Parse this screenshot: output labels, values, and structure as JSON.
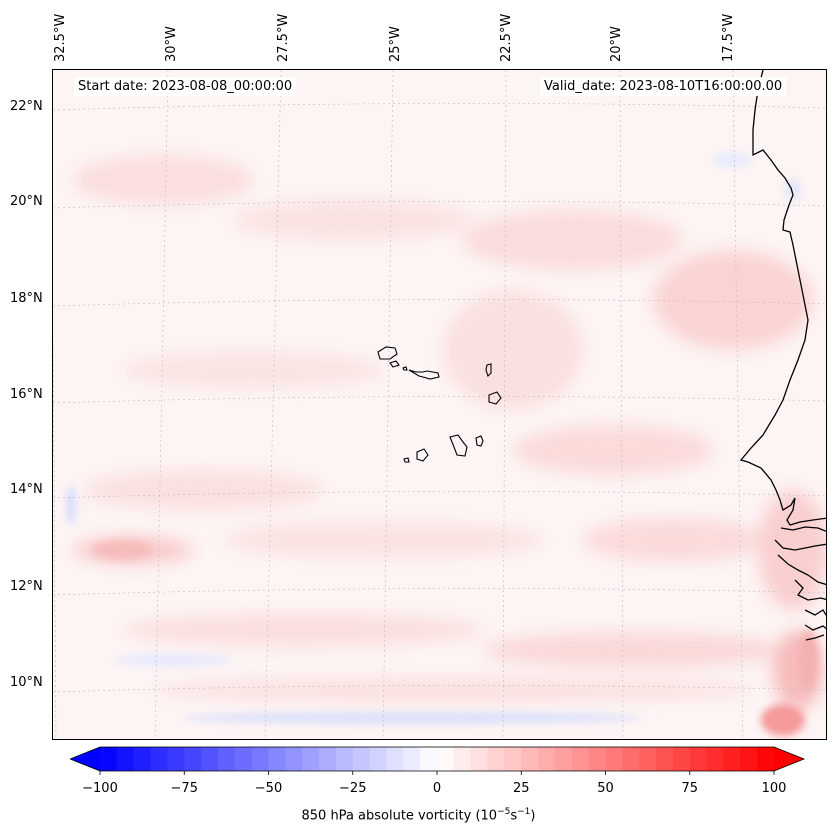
{
  "map": {
    "start_date": "Start date: 2023-08-08_00:00:00",
    "valid_date": "Valid_date: 2023-08-10T16:00:00.00",
    "lon_labels": [
      "32.5°W",
      "30°W",
      "27.5°W",
      "25°W",
      "22.5°W",
      "20°W",
      "17.5°W"
    ],
    "lat_labels": [
      "22°N",
      "20°N",
      "18°N",
      "16°N",
      "14°N",
      "12°N",
      "10°N"
    ],
    "field": "850 hPa absolute vorticity",
    "features": [
      "Cape Verde islands",
      "West African coastline (Mauritania, Senegal, Gambia, Guinea-Bissau)"
    ]
  },
  "colorbar": {
    "label_main": "850 hPa absolute vorticity (10",
    "label_exp1": "−5",
    "label_mid": "s",
    "label_exp2": "−1",
    "label_end": ")",
    "ticks": [
      "−100",
      "−75",
      "−50",
      "−25",
      "0",
      "25",
      "50",
      "75",
      "100"
    ],
    "min": -100,
    "max": 100,
    "step": 5,
    "colormap": "bwr",
    "extend": "both",
    "color_low": "#0000ff",
    "color_mid": "#ffffff",
    "color_high": "#ff0000"
  }
}
